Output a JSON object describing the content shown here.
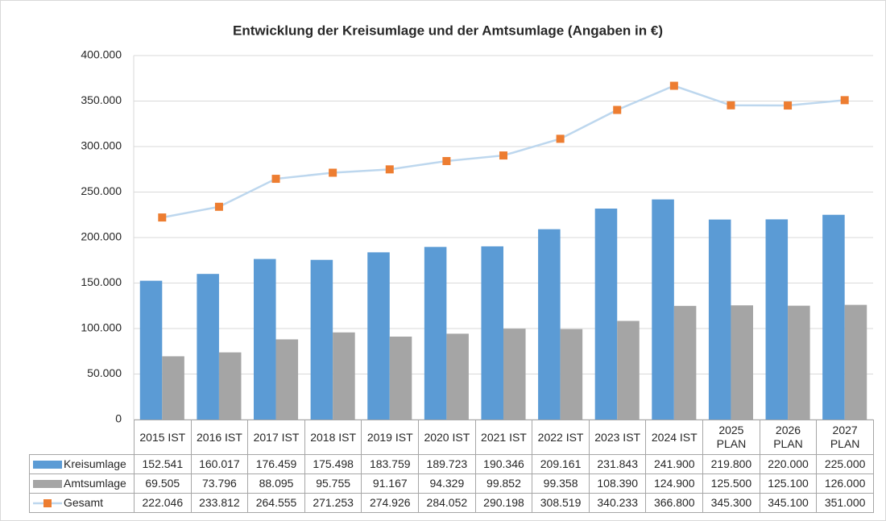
{
  "chart_data": {
    "type": "bar",
    "title": "Entwicklung der Kreisumlage und der Amtsumlage (Angaben in €)",
    "categories": [
      "2015 IST",
      "2016 IST",
      "2017 IST",
      "2018 IST",
      "2019 IST",
      "2020 IST",
      "2021 IST",
      "2022 IST",
      "2023 IST",
      "2024 IST",
      "2025 PLAN",
      "2026 PLAN",
      "2027 PLAN"
    ],
    "series": [
      {
        "name": "Kreisumlage",
        "type": "bar",
        "color": "#5b9bd5",
        "values": [
          152541,
          160017,
          176459,
          175498,
          183759,
          189723,
          190346,
          209161,
          231843,
          241900,
          219800,
          220000,
          225000
        ],
        "value_labels": [
          "152.541",
          "160.017",
          "176.459",
          "175.498",
          "183.759",
          "189.723",
          "190.346",
          "209.161",
          "231.843",
          "241.900",
          "219.800",
          "220.000",
          "225.000"
        ]
      },
      {
        "name": "Amtsumlage",
        "type": "bar",
        "color": "#a5a5a5",
        "values": [
          69505,
          73796,
          88095,
          95755,
          91167,
          94329,
          99852,
          99358,
          108390,
          124900,
          125500,
          125100,
          126000
        ],
        "value_labels": [
          "69.505",
          "73.796",
          "88.095",
          "95.755",
          "91.167",
          "94.329",
          "99.852",
          "99.358",
          "108.390",
          "124.900",
          "125.500",
          "125.100",
          "126.000"
        ]
      },
      {
        "name": "Gesamt",
        "type": "line",
        "color": "#bdd7ee",
        "marker_color": "#ed7d31",
        "values": [
          222046,
          233812,
          264555,
          271253,
          274926,
          284052,
          290198,
          308519,
          340233,
          366800,
          345300,
          345100,
          351000
        ],
        "value_labels": [
          "222.046",
          "233.812",
          "264.555",
          "271.253",
          "274.926",
          "284.052",
          "290.198",
          "308.519",
          "340.233",
          "366.800",
          "345.300",
          "345.100",
          "351.000"
        ]
      }
    ],
    "ylim": [
      0,
      400000
    ],
    "yticks": [
      0,
      {
        "value": 50000,
        "label": "50.000"
      },
      {
        "value": 100000,
        "label": "100.000"
      },
      {
        "value": 150000,
        "label": "150.000"
      },
      {
        "value": 200000,
        "label": "200.000"
      },
      {
        "value": 250000,
        "label": "250.000"
      },
      {
        "value": 300000,
        "label": "300.000"
      },
      {
        "value": 350000,
        "label": "350.000"
      },
      {
        "value": 400000,
        "label": "400.000"
      }
    ],
    "grid": true
  }
}
